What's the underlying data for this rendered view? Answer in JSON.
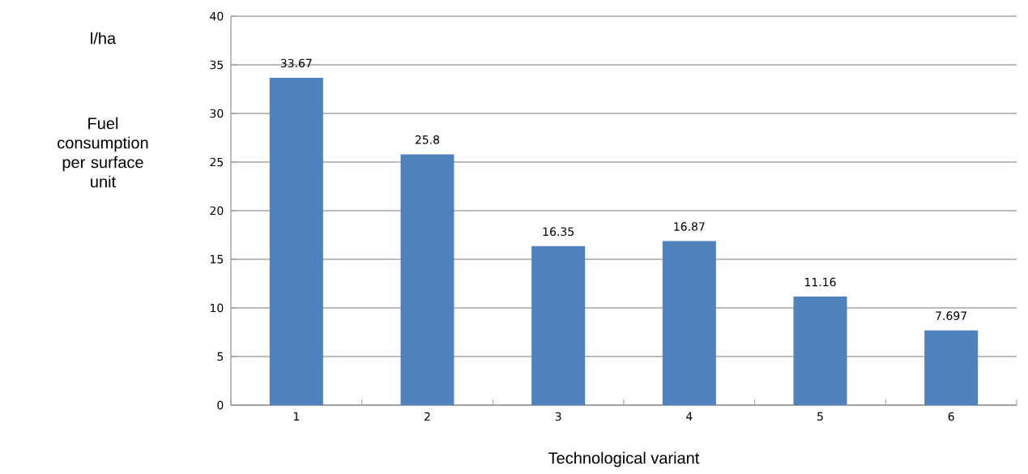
{
  "chart_data": {
    "type": "bar",
    "ylabel": "Fuel consumption per surface unit",
    "xlabel": "Technological variant",
    "annotations": [
      "l/ha"
    ],
    "categories": [
      "1",
      "2",
      "3",
      "4",
      "5",
      "6"
    ],
    "values": [
      33.67,
      25.8,
      16.35,
      16.87,
      11.16,
      7.697
    ],
    "color": "#4f81bd",
    "data_labels": true,
    "ylim": [
      0,
      40
    ],
    "yticks": [
      0,
      5,
      10,
      15,
      20,
      25,
      30,
      35,
      40
    ],
    "grid": "y"
  }
}
